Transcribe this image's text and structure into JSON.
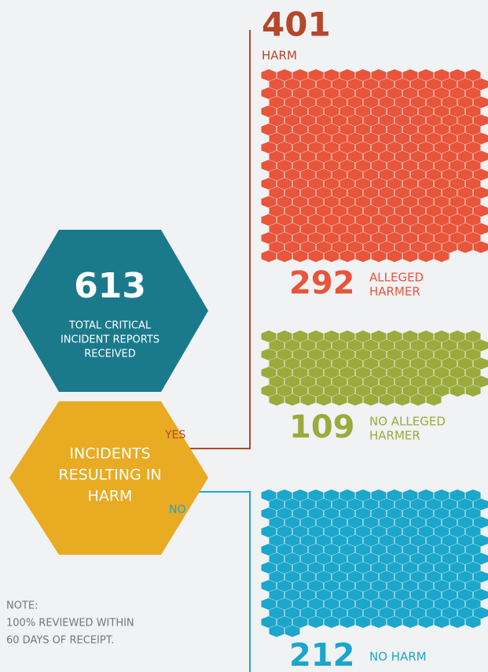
{
  "total": {
    "value": 613,
    "label": [
      "TOTAL CRITICAL",
      "INCIDENT REPORTS",
      "RECEIVED"
    ]
  },
  "question": [
    "INCIDENTS",
    "RESULTING IN",
    "HARM"
  ],
  "yes": "YES",
  "no": "NO",
  "harm": {
    "value": 401,
    "label": "HARM"
  },
  "groups": [
    {
      "value": 292,
      "label": [
        "ALLEGED",
        "HARMER"
      ],
      "color": "#e8553a"
    },
    {
      "value": 109,
      "label": [
        "NO ALLEGED",
        "HARMER"
      ],
      "color": "#9aab3c"
    },
    {
      "value": 212,
      "label": [
        "NO HARM"
      ],
      "color": "#1ba6cc"
    }
  ],
  "note": [
    "NOTE:",
    "100% REVIEWED WITHIN",
    "60 DAYS OF RECEIPT."
  ]
}
